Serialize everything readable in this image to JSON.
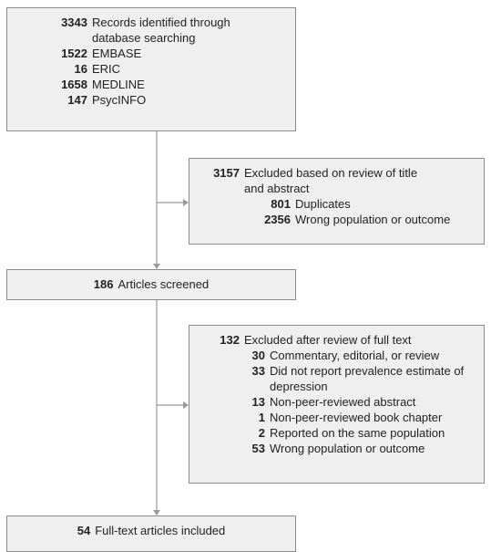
{
  "boxes": [
    {
      "count": 3343,
      "label": "Records identified through database searching",
      "details": [
        {
          "count": 1522,
          "label": "EMBASE"
        },
        {
          "count": 16,
          "label": "ERIC"
        },
        {
          "count": 1658,
          "label": "MEDLINE"
        },
        {
          "count": 147,
          "label": "PsycINFO"
        }
      ]
    },
    {
      "count": 3157,
      "label": "Excluded based on review of title and abstract",
      "details": [
        {
          "count": 801,
          "label": "Duplicates"
        },
        {
          "count": 2356,
          "label": "Wrong population or outcome"
        }
      ]
    },
    {
      "count": 186,
      "label": "Articles screened",
      "details": []
    },
    {
      "count": 132,
      "label": "Excluded after review of full text",
      "details": [
        {
          "count": 30,
          "label": "Commentary, editorial, or review"
        },
        {
          "count": 33,
          "label": "Did not report prevalence estimate of depression"
        },
        {
          "count": 13,
          "label": "Non-peer-reviewed abstract"
        },
        {
          "count": 1,
          "label": "Non-peer-reviewed book chapter"
        },
        {
          "count": 2,
          "label": "Reported on the same population"
        },
        {
          "count": 53,
          "label": "Wrong population or outcome"
        }
      ]
    },
    {
      "count": 54,
      "label": "Full-text articles included",
      "details": []
    }
  ]
}
